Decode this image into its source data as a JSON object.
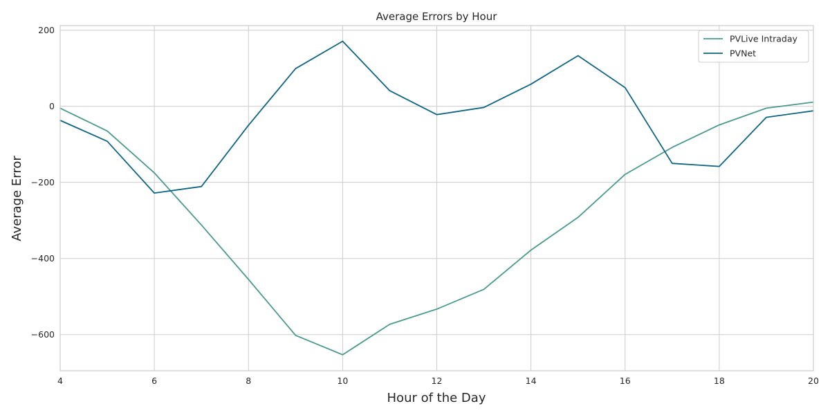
{
  "chart_data": {
    "type": "line",
    "title": "Average Errors by Hour",
    "xlabel": "Hour of the Day",
    "ylabel": "Average Error",
    "x": [
      4,
      5,
      6,
      7,
      8,
      9,
      10,
      11,
      12,
      13,
      14,
      15,
      16,
      17,
      18,
      19,
      20
    ],
    "xlim": [
      4,
      20
    ],
    "ylim": [
      -695,
      212
    ],
    "xticks": [
      4,
      6,
      8,
      10,
      12,
      14,
      16,
      18,
      20
    ],
    "yticks": [
      -600,
      -400,
      -200,
      0,
      200
    ],
    "grid": true,
    "legend_position": "top-right",
    "series": [
      {
        "name": "PVLive Intraday",
        "color": "#4a9a8c",
        "values": [
          -5,
          -65,
          -175,
          -312,
          -455,
          -602,
          -653,
          -573,
          -533,
          -481,
          -378,
          -292,
          -179,
          -108,
          -49,
          -5,
          11
        ]
      },
      {
        "name": "PVNet",
        "color": "#0e6481",
        "values": [
          -37,
          -92,
          -228,
          -211,
          -50,
          99,
          171,
          41,
          -22,
          -3,
          58,
          133,
          49,
          -150,
          -158,
          -29,
          -12
        ]
      }
    ]
  }
}
